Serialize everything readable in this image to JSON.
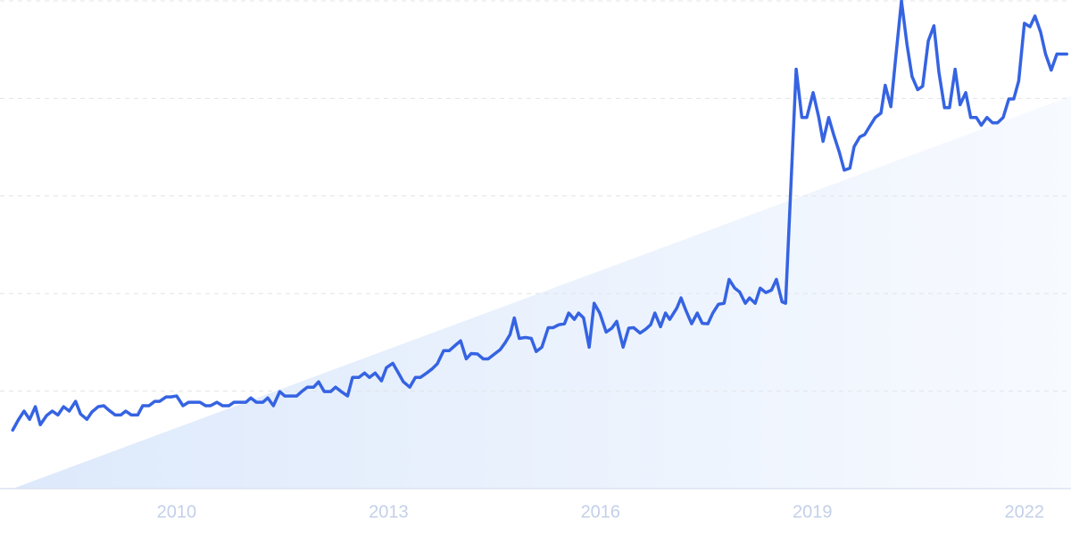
{
  "chart_data": {
    "type": "line",
    "color": "#3563e2",
    "trend": {
      "x": [
        2007.68,
        2022.66
      ],
      "values": [
        0,
        80.5
      ]
    },
    "x": [
      2007.68,
      2007.76,
      2007.84,
      2007.92,
      2008.0,
      2008.07,
      2008.16,
      2008.24,
      2008.32,
      2008.4,
      2008.48,
      2008.57,
      2008.64,
      2008.73,
      2008.8,
      2008.89,
      2008.97,
      2009.04,
      2009.13,
      2009.21,
      2009.28,
      2009.36,
      2009.45,
      2009.52,
      2009.61,
      2009.69,
      2009.76,
      2009.85,
      2009.92,
      2010.0,
      2010.09,
      2010.17,
      2010.24,
      2010.33,
      2010.41,
      2010.48,
      2010.57,
      2010.65,
      2010.74,
      2010.81,
      2010.89,
      2010.98,
      2011.05,
      2011.13,
      2011.22,
      2011.29,
      2011.37,
      2011.46,
      2011.53,
      2011.61,
      2011.7,
      2011.77,
      2011.85,
      2011.94,
      2012.01,
      2012.09,
      2012.18,
      2012.25,
      2012.33,
      2012.42,
      2012.49,
      2012.58,
      2012.66,
      2012.73,
      2012.81,
      2012.9,
      2012.97,
      2013.06,
      2013.14,
      2013.21,
      2013.3,
      2013.38,
      2013.45,
      2013.54,
      2013.62,
      2013.69,
      2013.78,
      2013.86,
      2013.93,
      2014.02,
      2014.1,
      2014.17,
      2014.26,
      2014.34,
      2014.41,
      2014.5,
      2014.58,
      2014.65,
      2014.72,
      2014.78,
      2014.85,
      2014.94,
      2015.02,
      2015.09,
      2015.17,
      2015.26,
      2015.33,
      2015.41,
      2015.49,
      2015.55,
      2015.63,
      2015.69,
      2015.76,
      2015.84,
      2015.91,
      2015.99,
      2016.08,
      2016.16,
      2016.23,
      2016.32,
      2016.4,
      2016.47,
      2016.56,
      2016.64,
      2016.71,
      2016.77,
      2016.85,
      2016.92,
      2016.98,
      2017.08,
      2017.14,
      2017.21,
      2017.29,
      2017.37,
      2017.44,
      2017.52,
      2017.59,
      2017.67,
      2017.75,
      2017.82,
      2017.9,
      2017.97,
      2018.05,
      2018.11,
      2018.19,
      2018.26,
      2018.34,
      2018.42,
      2018.49,
      2018.57,
      2018.62,
      2018.77,
      2018.85,
      2018.92,
      2019.01,
      2019.09,
      2019.15,
      2019.23,
      2019.3,
      2019.38,
      2019.45,
      2019.53,
      2019.59,
      2019.67,
      2019.74,
      2019.82,
      2019.89,
      2019.97,
      2020.03,
      2020.11,
      2020.18,
      2020.26,
      2020.34,
      2020.41,
      2020.49,
      2020.56,
      2020.64,
      2020.72,
      2020.79,
      2020.87,
      2020.94,
      2021.02,
      2021.09,
      2021.17,
      2021.24,
      2021.32,
      2021.39,
      2021.47,
      2021.55,
      2021.62,
      2021.7,
      2021.78,
      2021.85,
      2021.92,
      2022.0,
      2022.08,
      2022.15,
      2022.23,
      2022.3,
      2022.38,
      2022.46,
      2022.53,
      2022.6
    ],
    "values": [
      12.0,
      14.1,
      15.9,
      14.2,
      16.8,
      13.1,
      15.0,
      15.9,
      15.1,
      16.8,
      15.9,
      17.9,
      15.3,
      14.2,
      15.7,
      16.8,
      17.0,
      16.1,
      15.1,
      15.1,
      15.9,
      15.1,
      15.1,
      17.0,
      17.0,
      17.9,
      17.9,
      18.8,
      18.8,
      19.0,
      17.0,
      17.7,
      17.7,
      17.7,
      17.0,
      17.0,
      17.7,
      17.0,
      17.0,
      17.7,
      17.7,
      17.7,
      18.6,
      17.7,
      17.7,
      18.6,
      17.0,
      19.9,
      19.0,
      19.0,
      19.0,
      19.9,
      20.8,
      20.8,
      21.9,
      19.9,
      19.9,
      20.8,
      19.9,
      19.0,
      22.8,
      22.8,
      23.7,
      22.8,
      23.7,
      22.1,
      24.8,
      25.7,
      23.7,
      21.9,
      20.8,
      22.8,
      22.8,
      23.7,
      24.6,
      25.6,
      28.3,
      28.3,
      29.2,
      30.3,
      26.6,
      27.7,
      27.6,
      26.6,
      26.6,
      27.6,
      28.5,
      29.9,
      31.6,
      35.0,
      30.8,
      31.0,
      30.8,
      28.1,
      29.0,
      33.0,
      33.0,
      33.6,
      33.8,
      36.0,
      34.7,
      36.0,
      35.0,
      29.0,
      38.0,
      36.0,
      32.1,
      32.9,
      34.3,
      29.0,
      32.9,
      33.0,
      31.9,
      32.7,
      33.6,
      36.0,
      33.2,
      36.0,
      34.7,
      37.0,
      39.1,
      36.5,
      33.8,
      36.0,
      33.9,
      33.8,
      36.0,
      37.8,
      38.0,
      42.9,
      41.1,
      40.3,
      38.0,
      39.1,
      38.0,
      41.1,
      40.2,
      40.7,
      42.9,
      38.3,
      38.0,
      86.0,
      76.1,
      76.1,
      81.2,
      76.1,
      71.2,
      76.1,
      72.6,
      69.0,
      65.3,
      65.7,
      70.1,
      72.1,
      72.6,
      74.5,
      76.1,
      77.0,
      82.7,
      78.3,
      88.5,
      100,
      90.9,
      84.5,
      81.8,
      82.5,
      91.8,
      94.9,
      85.4,
      78.1,
      78.1,
      86.0,
      78.7,
      81.2,
      76.1,
      76.1,
      74.5,
      76.1,
      75.0,
      75.0,
      76.1,
      79.9,
      79.9,
      83.6,
      95.4,
      94.7,
      96.9,
      93.6,
      89.1,
      85.8,
      89.1,
      89.1,
      89.1
    ],
    "xlim": [
      2007.5,
      2022.66
    ],
    "xticks": [
      2010,
      2013,
      2016,
      2019,
      2022
    ],
    "ylim": [
      0,
      100
    ],
    "yticks": [
      0,
      20,
      40,
      60,
      80,
      100
    ],
    "grid": true
  }
}
